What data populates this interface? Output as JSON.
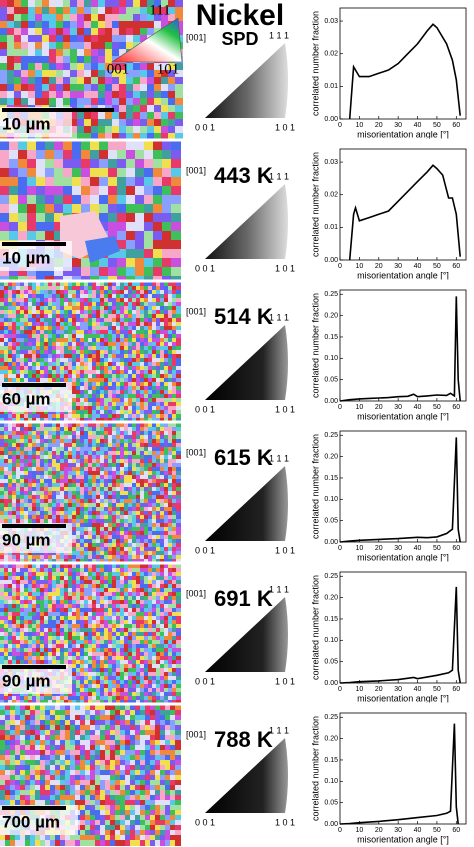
{
  "title": "Nickel",
  "color_key": {
    "top": "111",
    "left": "001",
    "right": "101"
  },
  "rows": [
    {
      "label": "SPD",
      "scale_bar": "10 µm",
      "pole_figure": {
        "axis": "[001]",
        "corners": {
          "top": "1 1 1",
          "left": "0 0 1",
          "right": "1 0 1"
        }
      }
    },
    {
      "label": "443 K",
      "scale_bar": "10 µm",
      "pole_figure": {
        "axis": "[001]",
        "corners": {
          "top": "1 1 1",
          "left": "0 0 1",
          "right": "1 0 1"
        }
      }
    },
    {
      "label": "514 K",
      "scale_bar": "60 µm",
      "pole_figure": {
        "axis": "[001]",
        "corners": {
          "top": "1 1 1",
          "left": "0 0 1",
          "right": "1 0 1"
        }
      }
    },
    {
      "label": "615 K",
      "scale_bar": "90 µm",
      "pole_figure": {
        "axis": "[001]",
        "corners": {
          "top": "1 1 1",
          "left": "0 0 1",
          "right": "1 0 1"
        }
      }
    },
    {
      "label": "691 K",
      "scale_bar": "90 µm",
      "pole_figure": {
        "axis": "[001]",
        "corners": {
          "top": "1 1 1",
          "left": "0 0 1",
          "right": "1 0 1"
        }
      }
    },
    {
      "label": "788 K",
      "scale_bar": "700 µm",
      "pole_figure": {
        "axis": "[001]",
        "corners": {
          "top": "1 1 1",
          "left": "0 0 1",
          "right": "1 0 1"
        }
      }
    }
  ],
  "chart_data": [
    {
      "type": "line",
      "x_label": "misorientation angle [°]",
      "y_label": "correlated number fraction",
      "x": [
        5,
        7,
        10,
        15,
        20,
        25,
        30,
        35,
        40,
        45,
        48,
        50,
        55,
        58,
        60,
        62
      ],
      "series": [
        {
          "color": "#000000",
          "values": [
            0,
            0.016,
            0.013,
            0.013,
            0.014,
            0.015,
            0.017,
            0.02,
            0.023,
            0.027,
            0.029,
            0.028,
            0.023,
            0.018,
            0.012,
            0.001
          ]
        }
      ],
      "xlim": [
        0,
        65
      ],
      "ylim": [
        0,
        0.034
      ],
      "xticks": [
        0,
        10,
        20,
        30,
        40,
        50,
        60
      ],
      "yticks": [
        {
          "value": 0,
          "label": "0.00"
        },
        {
          "value": 0.01,
          "label": "0.01"
        },
        {
          "value": 0.02,
          "label": "0.02"
        },
        {
          "value": 0.03,
          "label": "0.03"
        }
      ]
    },
    {
      "type": "line",
      "x_label": "misorientation angle [°]",
      "y_label": "correlated number fraction",
      "x": [
        5,
        7,
        8,
        10,
        15,
        20,
        25,
        30,
        35,
        40,
        45,
        48,
        50,
        53,
        56,
        58,
        60,
        62
      ],
      "series": [
        {
          "color": "#000000",
          "values": [
            0,
            0.014,
            0.016,
            0.012,
            0.013,
            0.014,
            0.015,
            0.018,
            0.021,
            0.024,
            0.027,
            0.029,
            0.028,
            0.026,
            0.019,
            0.019,
            0.014,
            0.001
          ]
        }
      ],
      "xlim": [
        0,
        65
      ],
      "ylim": [
        0,
        0.034
      ],
      "xticks": [
        0,
        10,
        20,
        30,
        40,
        50,
        60
      ],
      "yticks": [
        {
          "value": 0,
          "label": "0.00"
        },
        {
          "value": 0.01,
          "label": "0.01"
        },
        {
          "value": 0.02,
          "label": "0.02"
        },
        {
          "value": 0.03,
          "label": "0.03"
        }
      ]
    },
    {
      "type": "line",
      "x_label": "misorientation angle [°]",
      "y_label": "correlated number fraction",
      "x": [
        0,
        5,
        10,
        15,
        20,
        25,
        30,
        35,
        38,
        40,
        45,
        50,
        55,
        57,
        59,
        60,
        61,
        62
      ],
      "series": [
        {
          "color": "#000000",
          "values": [
            0,
            0.003,
            0.005,
            0.006,
            0.007,
            0.008,
            0.01,
            0.011,
            0.016,
            0.01,
            0.012,
            0.014,
            0.013,
            0.018,
            0.012,
            0.245,
            0.05,
            0
          ]
        }
      ],
      "xlim": [
        0,
        65
      ],
      "ylim": [
        0,
        0.26
      ],
      "xticks": [
        0,
        10,
        20,
        30,
        40,
        50,
        60
      ],
      "yticks": [
        {
          "value": 0,
          "label": "0.00"
        },
        {
          "value": 0.05,
          "label": "0.05"
        },
        {
          "value": 0.1,
          "label": "0.10"
        },
        {
          "value": 0.15,
          "label": "0.15"
        },
        {
          "value": 0.2,
          "label": "0.20"
        },
        {
          "value": 0.25,
          "label": "0.25"
        }
      ]
    },
    {
      "type": "line",
      "x_label": "misorientation angle [°]",
      "y_label": "correlated number fraction",
      "x": [
        0,
        5,
        10,
        20,
        30,
        40,
        45,
        50,
        55,
        58,
        60,
        61,
        62
      ],
      "series": [
        {
          "color": "#000000",
          "values": [
            0,
            0.002,
            0.004,
            0.006,
            0.008,
            0.011,
            0.01,
            0.012,
            0.02,
            0.03,
            0.245,
            0.03,
            0
          ]
        }
      ],
      "xlim": [
        0,
        65
      ],
      "ylim": [
        0,
        0.26
      ],
      "xticks": [
        0,
        10,
        20,
        30,
        40,
        50,
        60
      ],
      "yticks": [
        {
          "value": 0,
          "label": "0.00"
        },
        {
          "value": 0.05,
          "label": "0.05"
        },
        {
          "value": 0.1,
          "label": "0.10"
        },
        {
          "value": 0.15,
          "label": "0.15"
        },
        {
          "value": 0.2,
          "label": "0.20"
        },
        {
          "value": 0.25,
          "label": "0.25"
        }
      ]
    },
    {
      "type": "line",
      "x_label": "misorientation angle [°]",
      "y_label": "correlated number fraction",
      "x": [
        0,
        5,
        10,
        20,
        30,
        38,
        40,
        50,
        56,
        58,
        60,
        61,
        62
      ],
      "series": [
        {
          "color": "#000000",
          "values": [
            0,
            0.001,
            0.003,
            0.005,
            0.008,
            0.013,
            0.01,
            0.018,
            0.024,
            0.03,
            0.225,
            0.03,
            0
          ]
        }
      ],
      "xlim": [
        0,
        65
      ],
      "ylim": [
        0,
        0.26
      ],
      "xticks": [
        0,
        10,
        20,
        30,
        40,
        50,
        60
      ],
      "yticks": [
        {
          "value": 0,
          "label": "0.00"
        },
        {
          "value": 0.05,
          "label": "0.05"
        },
        {
          "value": 0.1,
          "label": "0.10"
        },
        {
          "value": 0.15,
          "label": "0.15"
        },
        {
          "value": 0.2,
          "label": "0.20"
        },
        {
          "value": 0.25,
          "label": "0.25"
        }
      ]
    },
    {
      "type": "line",
      "x_label": "misorientation angle [°]",
      "y_label": "correlated number fraction",
      "x": [
        0,
        5,
        10,
        20,
        30,
        40,
        50,
        55,
        57,
        59,
        60,
        61
      ],
      "series": [
        {
          "color": "#000000",
          "values": [
            0,
            0.001,
            0.003,
            0.006,
            0.01,
            0.015,
            0.02,
            0.025,
            0.03,
            0.235,
            0.04,
            0
          ]
        }
      ],
      "xlim": [
        0,
        65
      ],
      "ylim": [
        0,
        0.26
      ],
      "xticks": [
        0,
        10,
        20,
        30,
        40,
        50,
        60
      ],
      "yticks": [
        {
          "value": 0,
          "label": "0.00"
        },
        {
          "value": 0.05,
          "label": "0.05"
        },
        {
          "value": 0.1,
          "label": "0.10"
        },
        {
          "value": 0.15,
          "label": "0.15"
        },
        {
          "value": 0.2,
          "label": "0.20"
        },
        {
          "value": 0.25,
          "label": "0.25"
        }
      ]
    }
  ]
}
